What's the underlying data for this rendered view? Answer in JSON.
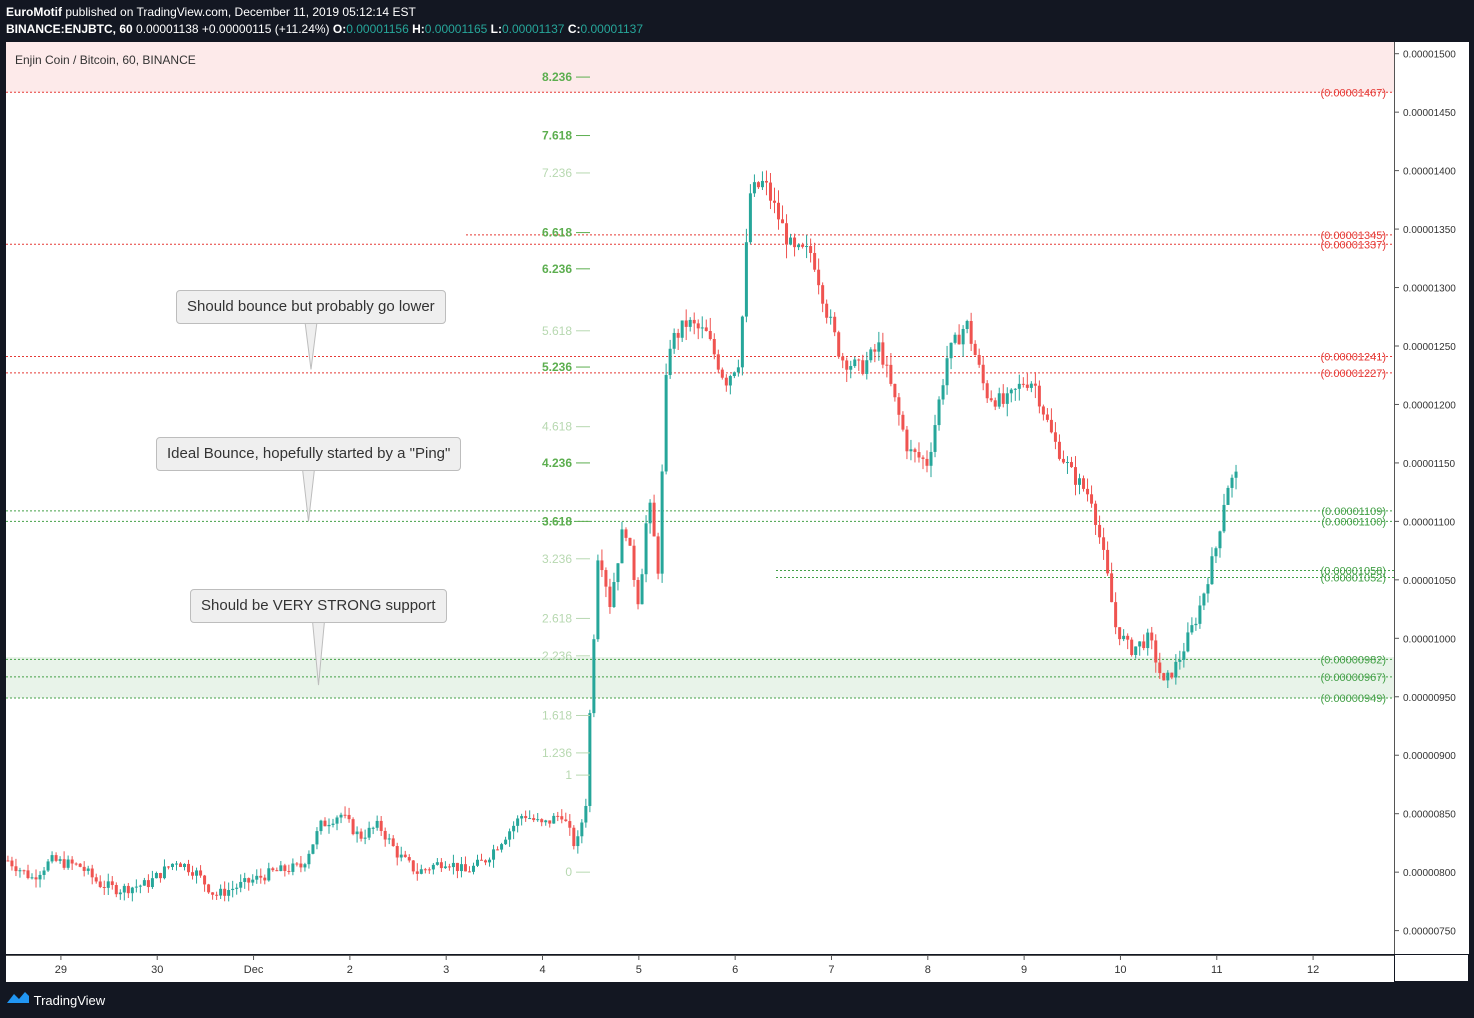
{
  "header": {
    "author": "EuroMotif",
    "published": " published on TradingView.com, December 11, 2019 05:12:14 EST",
    "symbol": "BINANCE:ENJBTC, 60",
    "last": "0.00001138",
    "change": "+0.00000115 (+11.24%)",
    "o_label": "O:",
    "o_value": "0.00001156",
    "h_label": "H:",
    "h_value": "0.00001165",
    "l_label": "L:",
    "l_value": "0.00001137",
    "c_label": "C:",
    "c_value": "0.00001137"
  },
  "legend_title": "Enjin Coin / Bitcoin, 60, BINANCE",
  "footer": {
    "brand": "TradingView"
  },
  "colors": {
    "up": "#26a69a",
    "down": "#ef5350",
    "background": "#131722",
    "red_level": "#e53935",
    "green_level": "#43a047"
  },
  "chart_data": {
    "type": "candlestick",
    "title": "Enjin Coin / Bitcoin, 60, BINANCE",
    "ylim": [
      7.3e-06,
      1.51e-05
    ],
    "x_domain": [
      28.43,
      12.84
    ],
    "price_ticks": [
      "0.00001500",
      "0.00001450",
      "0.00001400",
      "0.00001350",
      "0.00001300",
      "0.00001250",
      "0.00001200",
      "0.00001150",
      "0.00001100",
      "0.00001050",
      "0.00001000",
      "0.00000950",
      "0.00000900",
      "0.00000850",
      "0.00000800",
      "0.00000750"
    ],
    "time_ticks": [
      {
        "label": "29",
        "t": 29
      },
      {
        "label": "30",
        "t": 30
      },
      {
        "label": "Dec",
        "t": 31
      },
      {
        "label": "2",
        "t": 32
      },
      {
        "label": "3",
        "t": 33
      },
      {
        "label": "4",
        "t": 34
      },
      {
        "label": "5",
        "t": 35
      },
      {
        "label": "6",
        "t": 36
      },
      {
        "label": "7",
        "t": 37
      },
      {
        "label": "8",
        "t": 38
      },
      {
        "label": "9",
        "t": 39
      },
      {
        "label": "10",
        "t": 40
      },
      {
        "label": "11",
        "t": 41
      },
      {
        "label": "12",
        "t": 42
      }
    ],
    "price_path": [
      [
        28.45,
        8.1e-06
      ],
      [
        28.7,
        7.95e-06
      ],
      [
        28.9,
        8.1e-06
      ],
      [
        29.2,
        8.05e-06
      ],
      [
        29.4,
        7.9e-06
      ],
      [
        29.6,
        7.85e-06
      ],
      [
        29.9,
        7.9e-06
      ],
      [
        30.2,
        8.1e-06
      ],
      [
        30.4,
        8e-06
      ],
      [
        30.6,
        7.8e-06
      ],
      [
        30.9,
        7.9e-06
      ],
      [
        31.2,
        8e-06
      ],
      [
        31.5,
        8.05e-06
      ],
      [
        31.7,
        8.4e-06
      ],
      [
        31.9,
        8.5e-06
      ],
      [
        32.1,
        8.3e-06
      ],
      [
        32.3,
        8.4e-06
      ],
      [
        32.5,
        8.15e-06
      ],
      [
        32.7,
        8e-06
      ],
      [
        33.0,
        8.1e-06
      ],
      [
        33.2,
        8e-06
      ],
      [
        33.4,
        8.1e-06
      ],
      [
        33.6,
        8.3e-06
      ],
      [
        33.8,
        8.5e-06
      ],
      [
        34.0,
        8.4e-06
      ],
      [
        34.2,
        8.5e-06
      ],
      [
        34.35,
        8.2e-06
      ],
      [
        34.45,
        8.6e-06
      ],
      [
        34.5,
        9.5e-06
      ],
      [
        34.58,
        1.08e-05
      ],
      [
        34.7,
        1.03e-05
      ],
      [
        34.85,
        1.1e-05
      ],
      [
        35.0,
        1.03e-05
      ],
      [
        35.1,
        1.12e-05
      ],
      [
        35.2,
        1.06e-05
      ],
      [
        35.3,
        1.25e-05
      ],
      [
        35.5,
        1.27e-05
      ],
      [
        35.7,
        1.26e-05
      ],
      [
        35.9,
        1.22e-05
      ],
      [
        36.05,
        1.24e-05
      ],
      [
        36.15,
        1.38e-05
      ],
      [
        36.3,
        1.39e-05
      ],
      [
        36.45,
        1.36e-05
      ],
      [
        36.6,
        1.33e-05
      ],
      [
        36.8,
        1.33e-05
      ],
      [
        36.95,
        1.28e-05
      ],
      [
        37.1,
        1.24e-05
      ],
      [
        37.3,
        1.23e-05
      ],
      [
        37.5,
        1.25e-05
      ],
      [
        37.8,
        1.16e-05
      ],
      [
        38.0,
        1.15e-05
      ],
      [
        38.2,
        1.24e-05
      ],
      [
        38.4,
        1.27e-05
      ],
      [
        38.6,
        1.21e-05
      ],
      [
        38.8,
        1.2e-05
      ],
      [
        39.0,
        1.22e-05
      ],
      [
        39.1,
        1.22e-05
      ],
      [
        39.3,
        1.17e-05
      ],
      [
        39.5,
        1.14e-05
      ],
      [
        39.7,
        1.12e-05
      ],
      [
        39.85,
        1.06e-05
      ],
      [
        39.95,
        1.01e-05
      ],
      [
        40.1,
        9.9e-06
      ],
      [
        40.3,
        1e-05
      ],
      [
        40.45,
        9.6e-06
      ],
      [
        40.6,
        9.8e-06
      ],
      [
        40.8,
        1.02e-05
      ],
      [
        41.0,
        1.08e-05
      ],
      [
        41.1,
        1.13e-05
      ],
      [
        41.22,
        1.14e-05
      ]
    ],
    "fib_levels": [
      {
        "label": "8.236",
        "price": 1.48e-05,
        "strong": true
      },
      {
        "label": "7.618",
        "price": 1.43e-05,
        "strong": true
      },
      {
        "label": "7.236",
        "price": 1.398e-05,
        "strong": false
      },
      {
        "label": "6.618",
        "price": 1.347e-05,
        "strong": true
      },
      {
        "label": "6.236",
        "price": 1.316e-05,
        "strong": true
      },
      {
        "label": "5.618",
        "price": 1.263e-05,
        "strong": false
      },
      {
        "label": "5.236",
        "price": 1.232e-05,
        "strong": true
      },
      {
        "label": "4.618",
        "price": 1.181e-05,
        "strong": false
      },
      {
        "label": "4.236",
        "price": 1.15e-05,
        "strong": true
      },
      {
        "label": "3.618",
        "price": 1.1e-05,
        "strong": true
      },
      {
        "label": "3.236",
        "price": 1.068e-05,
        "strong": false
      },
      {
        "label": "2.618",
        "price": 1.017e-05,
        "strong": false
      },
      {
        "label": "2.236",
        "price": 9.85e-06,
        "strong": false
      },
      {
        "label": "1.618",
        "price": 9.34e-06,
        "strong": false
      },
      {
        "label": "1.236",
        "price": 9.02e-06,
        "strong": false
      },
      {
        "label": "1",
        "price": 8.83e-06,
        "strong": false
      },
      {
        "label": "0",
        "price": 8e-06,
        "strong": false
      }
    ],
    "levels": [
      {
        "label": "(0.00001467)",
        "price": 1.467e-05,
        "color": "red"
      },
      {
        "label": "(0.00001345)",
        "price": 1.345e-05,
        "color": "red"
      },
      {
        "label": "(0.00001337)",
        "price": 1.337e-05,
        "color": "red"
      },
      {
        "label": "(0.00001241)",
        "price": 1.241e-05,
        "color": "red"
      },
      {
        "label": "(0.00001227)",
        "price": 1.227e-05,
        "color": "red"
      },
      {
        "label": "(0.00001109)",
        "price": 1.109e-05,
        "color": "green"
      },
      {
        "label": "(0.00001100)",
        "price": 1.1e-05,
        "color": "green"
      },
      {
        "label": "(0.00001058)",
        "price": 1.058e-05,
        "color": "green"
      },
      {
        "label": "(0.00001052)",
        "price": 1.052e-05,
        "color": "green"
      },
      {
        "label": "(0.00000982)",
        "price": 9.82e-06,
        "color": "green"
      },
      {
        "label": "(0.00000967)",
        "price": 9.67e-06,
        "color": "green"
      },
      {
        "label": "(0.00000949)",
        "price": 9.49e-06,
        "color": "green"
      }
    ],
    "zones": [
      {
        "name": "resistance-top",
        "from": 1.467e-05,
        "to": 1.51e-05,
        "color": "red"
      },
      {
        "name": "support-strong",
        "from": 9.49e-06,
        "to": 9.84e-06,
        "color": "green"
      }
    ],
    "annotations": [
      {
        "text": "Should bounce but probably go lower",
        "target_price": 1.23e-05
      },
      {
        "text": "Ideal Bounce, hopefully started by a \"Ping\"",
        "target_price": 1.1e-05
      },
      {
        "text": "Should be VERY STRONG support",
        "target_price": 9.6e-06
      }
    ]
  }
}
